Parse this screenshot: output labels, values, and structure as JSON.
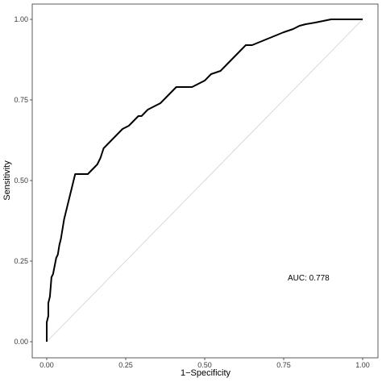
{
  "chart_data": {
    "type": "line",
    "title": "",
    "xlabel": "1−Specificity",
    "ylabel": "Sensitivity",
    "xlim": [
      0,
      1
    ],
    "ylim": [
      0,
      1
    ],
    "x_ticks": [
      "0.00",
      "0.25",
      "0.50",
      "0.75",
      "1.00"
    ],
    "y_ticks": [
      "0.00",
      "0.25",
      "0.50",
      "0.75",
      "1.00"
    ],
    "grid": false,
    "legend": "none",
    "annotation": "AUC: 0.778",
    "diagonal_reference": true,
    "colors": {
      "curve": "#000000",
      "diagonal": "#d0d0d0",
      "frame": "#333333",
      "ticks": "#333333"
    },
    "series": [
      {
        "x": [
          0.0,
          0.0,
          0.005,
          0.005,
          0.01,
          0.015,
          0.02,
          0.03,
          0.035,
          0.04,
          0.045,
          0.05,
          0.055,
          0.06,
          0.065,
          0.07,
          0.075,
          0.08,
          0.09,
          0.1,
          0.11,
          0.13,
          0.15,
          0.16,
          0.17,
          0.18,
          0.19,
          0.2,
          0.22,
          0.24,
          0.26,
          0.27,
          0.28,
          0.29,
          0.3,
          0.31,
          0.32,
          0.34,
          0.36,
          0.38,
          0.39,
          0.4,
          0.41,
          0.42,
          0.45,
          0.46,
          0.48,
          0.5,
          0.52,
          0.55,
          0.58,
          0.6,
          0.61,
          0.62,
          0.63,
          0.65,
          0.7,
          0.75,
          0.78,
          0.8,
          0.82,
          0.85,
          0.9,
          0.95,
          1.0
        ],
        "y": [
          0.0,
          0.06,
          0.08,
          0.12,
          0.14,
          0.2,
          0.21,
          0.26,
          0.27,
          0.3,
          0.32,
          0.35,
          0.38,
          0.4,
          0.42,
          0.44,
          0.46,
          0.48,
          0.52,
          0.52,
          0.52,
          0.52,
          0.54,
          0.55,
          0.57,
          0.6,
          0.61,
          0.62,
          0.64,
          0.66,
          0.67,
          0.68,
          0.69,
          0.7,
          0.7,
          0.71,
          0.72,
          0.73,
          0.74,
          0.76,
          0.77,
          0.78,
          0.79,
          0.79,
          0.79,
          0.79,
          0.8,
          0.81,
          0.83,
          0.84,
          0.87,
          0.89,
          0.9,
          0.91,
          0.92,
          0.92,
          0.94,
          0.96,
          0.97,
          0.98,
          0.985,
          0.99,
          1.0,
          1.0,
          1.0
        ]
      }
    ]
  }
}
